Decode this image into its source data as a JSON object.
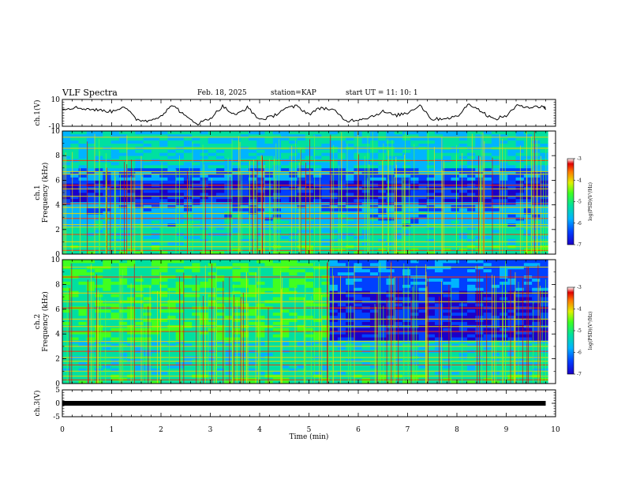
{
  "header": {
    "title": "VLF Spectra",
    "date": "Feb. 18, 2025",
    "station": "station=KAP",
    "start": "start UT =  11: 10: 1"
  },
  "chart_data": [
    {
      "type": "line",
      "panel": "ch1",
      "ylabel": "ch.1(V)",
      "ylim": [
        -10,
        10
      ],
      "yticks": [
        "10",
        "-10"
      ],
      "x": [
        0,
        0.25,
        0.5,
        0.75,
        1,
        1.25,
        1.5,
        1.75,
        2,
        2.25,
        2.5,
        2.75,
        3,
        3.25,
        3.5,
        3.75,
        4,
        4.25,
        4.5,
        4.75,
        5,
        5.25,
        5.5,
        5.75,
        6,
        6.25,
        6.5,
        6.75,
        7,
        7.25,
        7.5,
        7.75,
        8,
        8.25,
        8.5,
        8.75,
        9,
        9.25,
        9.5,
        9.75,
        9.8
      ],
      "values": [
        3,
        4,
        3,
        2,
        1,
        5,
        -5,
        -6,
        -2,
        6,
        -3,
        -8,
        -4,
        5,
        -2,
        4,
        -5,
        -3,
        3,
        5,
        -1,
        4,
        2,
        -6,
        -5,
        -3,
        1,
        -2,
        0,
        6,
        -5,
        -4,
        -3,
        7,
        1,
        -5,
        -2,
        6,
        4,
        5,
        3
      ]
    },
    {
      "type": "heatmap",
      "panel": "ch1-spectrogram",
      "ylabel": "ch.1 Frequency (kHz)",
      "ylim": [
        0,
        10
      ],
      "yticks": [
        "0",
        "2",
        "4",
        "6",
        "8",
        "10"
      ],
      "colorbar": {
        "label": "log(PSD)(V²/Hz)",
        "range": [
          -7,
          -3
        ],
        "ticks": [
          "-3",
          "-4",
          "-5",
          "-6",
          "-7"
        ]
      }
    },
    {
      "type": "heatmap",
      "panel": "ch2-spectrogram",
      "ylabel": "ch.2 Frequency (kHz)",
      "ylim": [
        0,
        10
      ],
      "yticks": [
        "0",
        "2",
        "4",
        "6",
        "8",
        "10"
      ],
      "colorbar": {
        "label": "log(PSD)(V²/Hz)",
        "range": [
          -7,
          -3
        ],
        "ticks": [
          "-3",
          "-4",
          "-5",
          "-6",
          "-7"
        ]
      }
    },
    {
      "type": "line",
      "panel": "ch3",
      "ylabel": "ch.3(V)",
      "ylim": [
        -5,
        5
      ],
      "yticks": [
        "5",
        "0",
        "-5"
      ],
      "x": [
        0,
        9.8
      ],
      "values": [
        0,
        0
      ]
    }
  ],
  "xaxis": {
    "label": "Time (min)",
    "range": [
      0,
      10
    ],
    "ticks": [
      "0",
      "1",
      "2",
      "3",
      "4",
      "5",
      "6",
      "7",
      "8",
      "9",
      "10"
    ]
  }
}
